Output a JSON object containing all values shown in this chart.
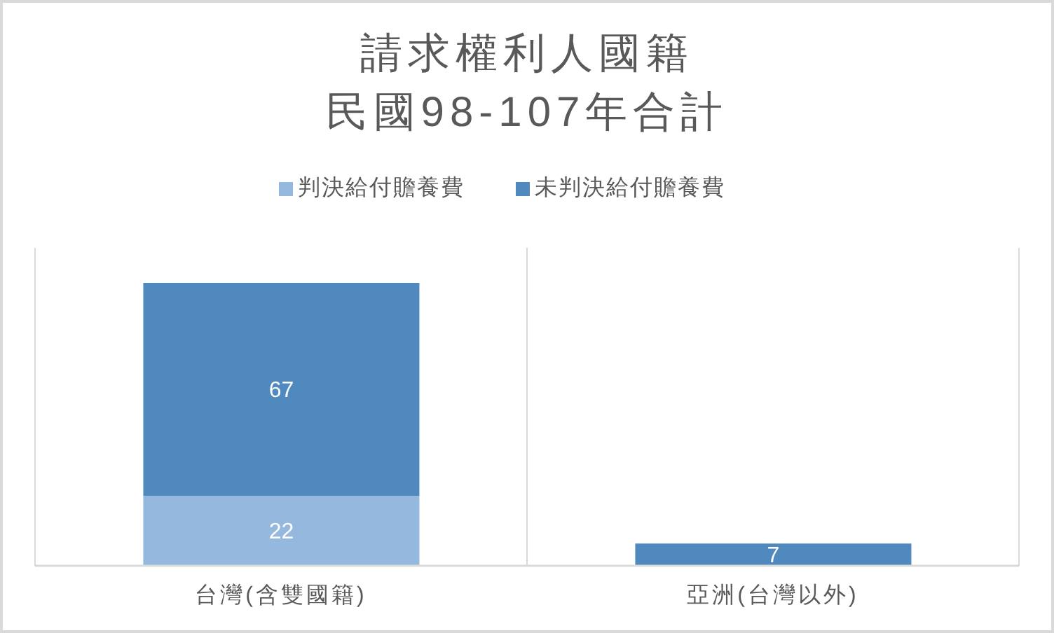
{
  "chart_data": {
    "type": "bar",
    "title": "請求權利人國籍",
    "subtitle": "民國98-107年合計",
    "categories": [
      "台灣(含雙國籍)",
      "亞洲(台灣以外)"
    ],
    "series": [
      {
        "name": "判決給付贍養費",
        "color": "#95b8de",
        "values": [
          22,
          null
        ]
      },
      {
        "name": "未判決給付贍養費",
        "color": "#4f89bd",
        "values": [
          67,
          7
        ]
      }
    ],
    "stacked": true,
    "data_labels": true,
    "ylim": [
      0,
      100
    ],
    "grid": "x",
    "legend": "top",
    "tick_labels": "x"
  }
}
